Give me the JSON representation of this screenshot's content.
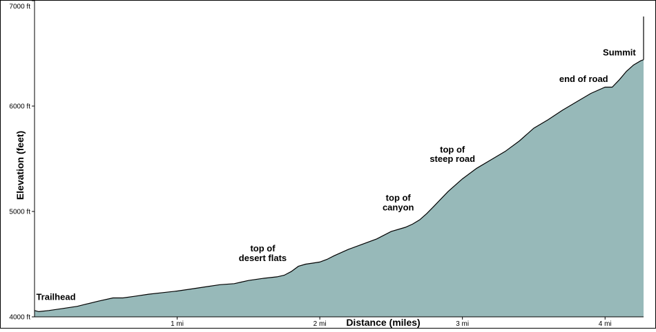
{
  "chart_data": {
    "type": "area",
    "title": "",
    "xlabel": "Distance (miles)",
    "ylabel": "Elevation (feet)",
    "xlim": [
      0,
      4.27
    ],
    "ylim": [
      4000,
      7000
    ],
    "fill_color": "#97b9b9",
    "line_color": "#000000",
    "grid": false,
    "y_ticks": [
      {
        "value": 4000,
        "label": "4000 ft"
      },
      {
        "value": 5000,
        "label": "5000 ft"
      },
      {
        "value": 6000,
        "label": "6000 ft"
      },
      {
        "value": 7000,
        "label": "7000 ft"
      }
    ],
    "x_ticks": [
      {
        "value": 1,
        "label": "1 mi"
      },
      {
        "value": 2,
        "label": "2 mi"
      },
      {
        "value": 3,
        "label": "3 mi"
      },
      {
        "value": 4,
        "label": "4 mi"
      }
    ],
    "series": [
      {
        "x": [
          0,
          0.03,
          0.1,
          0.2,
          0.3,
          0.36,
          0.45,
          0.55,
          0.62,
          0.7,
          0.8,
          0.9,
          1.0,
          1.1,
          1.2,
          1.3,
          1.4,
          1.45,
          1.5,
          1.6,
          1.7,
          1.75,
          1.8,
          1.85,
          1.9,
          1.95,
          2.0,
          2.05,
          2.1,
          2.2,
          2.3,
          2.4,
          2.5,
          2.6,
          2.65,
          2.7,
          2.75,
          2.8,
          2.9,
          3.0,
          3.1,
          3.2,
          3.3,
          3.4,
          3.5,
          3.6,
          3.7,
          3.8,
          3.9,
          4.0,
          4.05,
          4.1,
          4.15,
          4.2,
          4.25,
          4.27
        ],
        "y": [
          4060,
          4050,
          4060,
          4080,
          4100,
          4120,
          4150,
          4180,
          4180,
          4195,
          4215,
          4230,
          4245,
          4265,
          4285,
          4305,
          4315,
          4330,
          4345,
          4365,
          4380,
          4395,
          4430,
          4480,
          4500,
          4510,
          4520,
          4545,
          4580,
          4640,
          4690,
          4740,
          4810,
          4850,
          4880,
          4920,
          4980,
          5050,
          5190,
          5310,
          5410,
          5490,
          5570,
          5670,
          5790,
          5870,
          5960,
          6040,
          6120,
          6180,
          6180,
          6250,
          6330,
          6390,
          6430,
          6440
        ]
      }
    ],
    "summit_spike": {
      "x": 4.27,
      "y": 6850
    },
    "annotations": [
      {
        "text": "Trailhead",
        "x": 0.15,
        "y": 4160
      },
      {
        "text": "top of",
        "x": 1.6,
        "y": 4620
      },
      {
        "text": "desert flats",
        "x": 1.6,
        "y": 4530
      },
      {
        "text": "top of",
        "x": 2.55,
        "y": 5100
      },
      {
        "text": "canyon",
        "x": 2.55,
        "y": 5010
      },
      {
        "text": "top of",
        "x": 2.93,
        "y": 5560
      },
      {
        "text": "steep road",
        "x": 2.93,
        "y": 5470
      },
      {
        "text": "end of road",
        "x": 3.85,
        "y": 6230
      },
      {
        "text": "Summit",
        "x": 4.1,
        "y": 6480
      }
    ]
  }
}
